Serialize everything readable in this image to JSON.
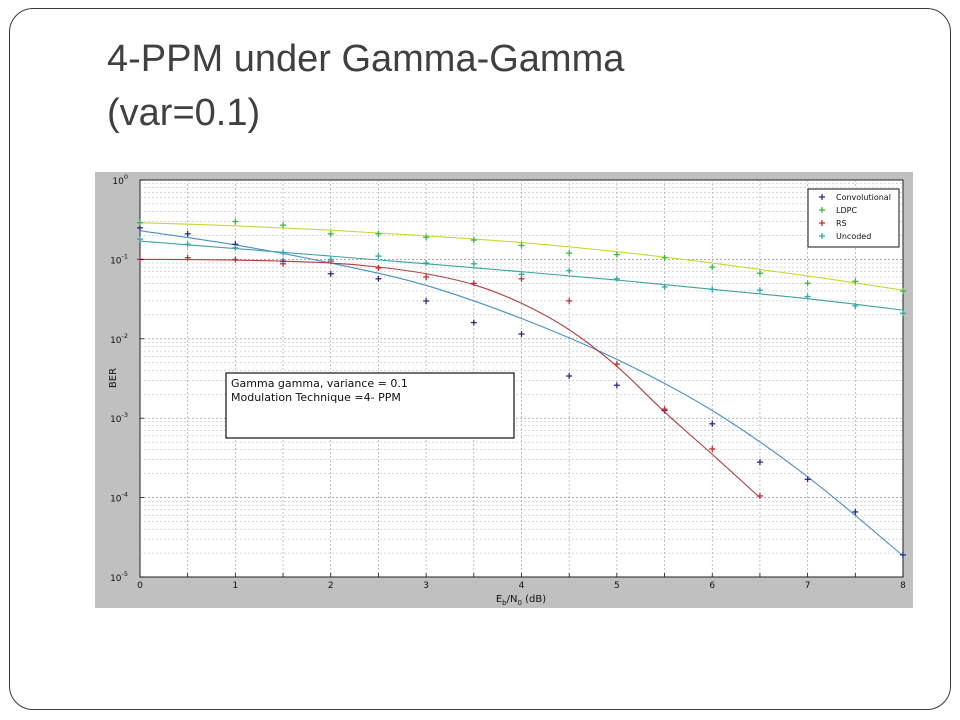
{
  "slide": {
    "title_line1": "4-PPM under Gamma-Gamma",
    "title_line2": "(var=0.1)"
  },
  "chart_data": {
    "type": "scatter",
    "title": "",
    "xlabel": "Eb/N0 (dB)",
    "xlabel_main": "E",
    "xlabel_sub1": "b",
    "xlabel_mid": "/N",
    "xlabel_sub2": "0",
    "xlabel_tail": " (dB)",
    "ylabel": "BER",
    "xlim": [
      0,
      8
    ],
    "ylim": [
      1e-05,
      1
    ],
    "yscale": "log",
    "grid": true,
    "legend_position": "top-right",
    "x_ticks": [
      0,
      0.5,
      1,
      1.5,
      2,
      2.5,
      3,
      3.5,
      4,
      4.5,
      5,
      5.5,
      6,
      6.5,
      7,
      7.5,
      8
    ],
    "x_tick_labels": [
      "0",
      "",
      "1",
      "",
      "2",
      "",
      "3",
      "",
      "4",
      "",
      "5",
      "",
      "6",
      "",
      "7",
      "",
      "8"
    ],
    "y_ticks": [
      {
        "value": 1,
        "base": "10",
        "exp": "0"
      },
      {
        "value": 0.1,
        "base": "10",
        "exp": "-1"
      },
      {
        "value": 0.01,
        "base": "10",
        "exp": "-2"
      },
      {
        "value": 0.001,
        "base": "10",
        "exp": "-3"
      },
      {
        "value": 0.0001,
        "base": "10",
        "exp": "-4"
      },
      {
        "value": 1e-05,
        "base": "10",
        "exp": "-5"
      }
    ],
    "annotation": {
      "lines": [
        "Gamma gamma, variance = 0.1",
        "Modulation Technique =4- PPM"
      ]
    },
    "series": [
      {
        "name": "Convolutional",
        "marker": "+",
        "marker_color": "#2a2a8a",
        "line_color": "#4a90c8",
        "x": [
          0,
          0.5,
          1,
          1.5,
          2,
          2.5,
          3,
          3.5,
          4,
          4.5,
          5,
          5.5,
          6,
          6.5,
          7,
          7.5,
          8
        ],
        "y": [
          0.25,
          0.21,
          0.155,
          0.095,
          0.066,
          0.057,
          0.03,
          0.016,
          0.0115,
          0.0034,
          0.0026,
          0.00125,
          0.00085,
          0.00028,
          0.00017,
          6.6e-05,
          1.9e-05
        ],
        "fit_x": [
          0,
          1,
          2,
          3,
          4,
          5,
          6,
          7,
          8
        ],
        "fit_y": [
          0.23,
          0.152,
          0.09,
          0.047,
          0.018,
          0.0055,
          0.00125,
          0.000183,
          1.85e-05
        ]
      },
      {
        "name": "LDPC",
        "marker": "+",
        "marker_color": "#3ab83a",
        "line_color": "#c8d830",
        "x": [
          0,
          1,
          1.5,
          2,
          2.5,
          3,
          3.5,
          4,
          4.5,
          5,
          5.5,
          6,
          6.5,
          7,
          7.5,
          8
        ],
        "y": [
          0.29,
          0.3,
          0.27,
          0.21,
          0.21,
          0.19,
          0.175,
          0.15,
          0.12,
          0.115,
          0.105,
          0.08,
          0.067,
          0.05,
          0.053,
          0.04
        ],
        "fit_x": [
          0,
          1,
          2,
          3,
          4,
          5,
          6,
          7,
          8
        ],
        "fit_y": [
          0.29,
          0.265,
          0.233,
          0.198,
          0.163,
          0.125,
          0.09,
          0.062,
          0.041
        ]
      },
      {
        "name": "RS",
        "marker": "+",
        "marker_color": "#c03030",
        "line_color": "#b04040",
        "x": [
          0,
          0.5,
          1,
          1.5,
          2,
          2.5,
          3,
          3.5,
          4,
          4.5,
          5,
          5.5,
          6,
          6.5
        ],
        "y": [
          0.1,
          0.105,
          0.1,
          0.088,
          0.095,
          0.078,
          0.06,
          0.05,
          0.057,
          0.03,
          0.0048,
          0.0013,
          0.00041,
          0.000105
        ],
        "fit_x": [
          0,
          1,
          2,
          2.5,
          3,
          3.5,
          4,
          4.5,
          5,
          5.5,
          6,
          6.5
        ],
        "fit_y": [
          0.1,
          0.098,
          0.09,
          0.08,
          0.066,
          0.048,
          0.028,
          0.013,
          0.0045,
          0.0012,
          0.00035,
          0.0001
        ]
      },
      {
        "name": "Uncoded",
        "marker": "+",
        "marker_color": "#30a8a8",
        "line_color": "#40a0a0",
        "x": [
          0,
          0.5,
          1,
          1.5,
          2,
          2.5,
          3,
          3.5,
          4,
          4.5,
          5,
          5.5,
          6,
          6.5,
          7,
          7.5,
          8
        ],
        "y": [
          0.18,
          0.155,
          0.14,
          0.122,
          0.1,
          0.11,
          0.09,
          0.088,
          0.065,
          0.072,
          0.057,
          0.045,
          0.042,
          0.041,
          0.034,
          0.026,
          0.021
        ],
        "fit_x": [
          0,
          1,
          2,
          3,
          4,
          5,
          6,
          7,
          8
        ],
        "fit_y": [
          0.17,
          0.137,
          0.11,
          0.088,
          0.07,
          0.055,
          0.042,
          0.032,
          0.023
        ]
      }
    ]
  }
}
